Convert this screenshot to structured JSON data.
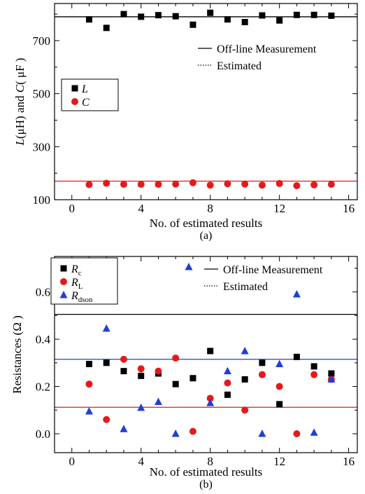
{
  "chart_data": [
    {
      "type": "scatter",
      "caption": "(a)",
      "xlabel": "No. of estimated results",
      "ylabel_parts": [
        "L",
        "(μH) and ",
        "C",
        "( μF )"
      ],
      "xlim": [
        -1,
        16.5
      ],
      "ylim": [
        100,
        840
      ],
      "xticks": [
        0,
        4,
        8,
        12,
        16
      ],
      "yticks": [
        100,
        300,
        500,
        700
      ],
      "x": [
        1,
        2,
        3,
        4,
        5,
        6,
        7,
        8,
        9,
        10,
        11,
        12,
        13,
        14,
        15
      ],
      "series": [
        {
          "name": "L",
          "marker": "square",
          "color": "#000000",
          "values": [
            780,
            748,
            800,
            790,
            796,
            792,
            760,
            805,
            780,
            770,
            795,
            776,
            797,
            797,
            794
          ]
        },
        {
          "name": "C",
          "marker": "circle",
          "color": "#e31a1c",
          "values": [
            157,
            162,
            158,
            158,
            158,
            159,
            164,
            155,
            160,
            159,
            155,
            161,
            153,
            156,
            158
          ]
        }
      ],
      "reference_lines": [
        {
          "y": 790,
          "color": "#000000"
        },
        {
          "y": 170,
          "color": "#e31a1c"
        }
      ],
      "legend_lines": [
        {
          "label": "Off-line Measurement",
          "style": "solid"
        },
        {
          "label": "Estimated",
          "style": "dotted"
        }
      ],
      "legend_markers_placement": "left",
      "legend_lines_placement": "top-right"
    },
    {
      "type": "scatter",
      "caption": "(b)",
      "xlabel": "No. of estimated results",
      "ylabel": "Resistances (Ω )",
      "xlim": [
        -1,
        16.5
      ],
      "ylim": [
        -0.08,
        0.75
      ],
      "xticks": [
        0,
        4,
        8,
        12,
        16
      ],
      "yticks": [
        0.0,
        0.2,
        0.4,
        0.6
      ],
      "ytick_labels": [
        "0.0",
        "0.2",
        "0.4",
        "0.6"
      ],
      "x": [
        1,
        2,
        3,
        4,
        5,
        6,
        7,
        8,
        9,
        10,
        11,
        12,
        13,
        14,
        15
      ],
      "series": [
        {
          "name": "R",
          "subscript": "c",
          "marker": "square",
          "color": "#000000",
          "values": [
            0.295,
            0.3,
            0.265,
            0.245,
            0.255,
            0.21,
            0.235,
            0.35,
            0.165,
            0.23,
            0.3,
            0.125,
            0.325,
            0.285,
            0.255
          ]
        },
        {
          "name": "R",
          "subscript": "L",
          "marker": "circle",
          "color": "#e31a1c",
          "values": [
            0.21,
            0.06,
            0.315,
            0.275,
            0.265,
            0.32,
            0.01,
            0.15,
            0.215,
            0.1,
            0.25,
            0.2,
            0.0,
            0.25,
            0.23
          ]
        },
        {
          "name": "R",
          "subscript": "dson",
          "marker": "triangle",
          "color": "#1f3fd8",
          "values": [
            0.095,
            0.445,
            0.02,
            0.11,
            0.135,
            0.0,
            null,
            0.13,
            0.265,
            0.35,
            0.0,
            0.295,
            0.59,
            0.005,
            0.23
          ]
        }
      ],
      "reference_lines": [
        {
          "y": 0.505,
          "color": "#000000"
        },
        {
          "y": 0.315,
          "color": "#1f3fd8"
        },
        {
          "y": 0.112,
          "color": "#e31a1c"
        }
      ],
      "legend_lines": [
        {
          "label": "Off-line Measurement",
          "style": "solid"
        },
        {
          "label": "Estimated",
          "style": "dotted"
        }
      ],
      "legend_markers_placement": "top-left",
      "legend_lines_placement": "top-right"
    }
  ]
}
